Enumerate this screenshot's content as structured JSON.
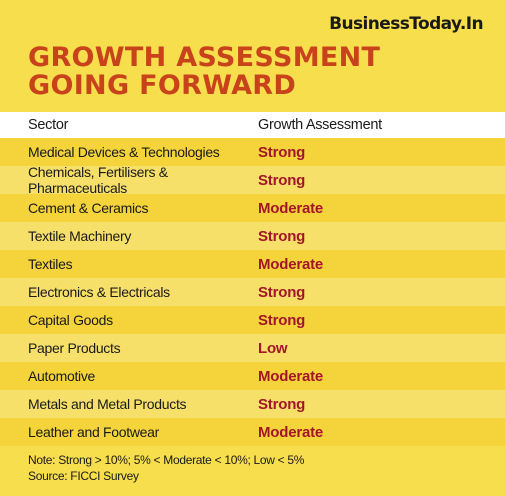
{
  "brand": "BusinessToday.In",
  "title": "GROWTH ASSESSMENT GOING FORWARD",
  "table": {
    "headers": [
      "Sector",
      "Growth Assessment"
    ],
    "rows": [
      {
        "sector": "Medical Devices & Technologies",
        "assessment": "Strong"
      },
      {
        "sector": "Chemicals, Fertilisers & Pharmaceuticals",
        "assessment": "Strong"
      },
      {
        "sector": "Cement & Ceramics",
        "assessment": "Moderate"
      },
      {
        "sector": "Textile Machinery",
        "assessment": "Strong"
      },
      {
        "sector": "Textiles",
        "assessment": "Moderate"
      },
      {
        "sector": "Electronics & Electricals",
        "assessment": "Strong"
      },
      {
        "sector": "Capital Goods",
        "assessment": "Strong"
      },
      {
        "sector": "Paper Products",
        "assessment": "Low"
      },
      {
        "sector": "Automotive",
        "assessment": "Moderate"
      },
      {
        "sector": "Metals and Metal Products",
        "assessment": "Strong"
      },
      {
        "sector": "Leather and Footwear",
        "assessment": "Moderate"
      }
    ]
  },
  "note": "Note: Strong > 10%; 5% < Moderate < 10%; Low < 5%",
  "source": "Source: FICCI Survey",
  "colors": {
    "background": "#f7de4c",
    "title": "#c8421c",
    "assessment": "#a3162a"
  }
}
